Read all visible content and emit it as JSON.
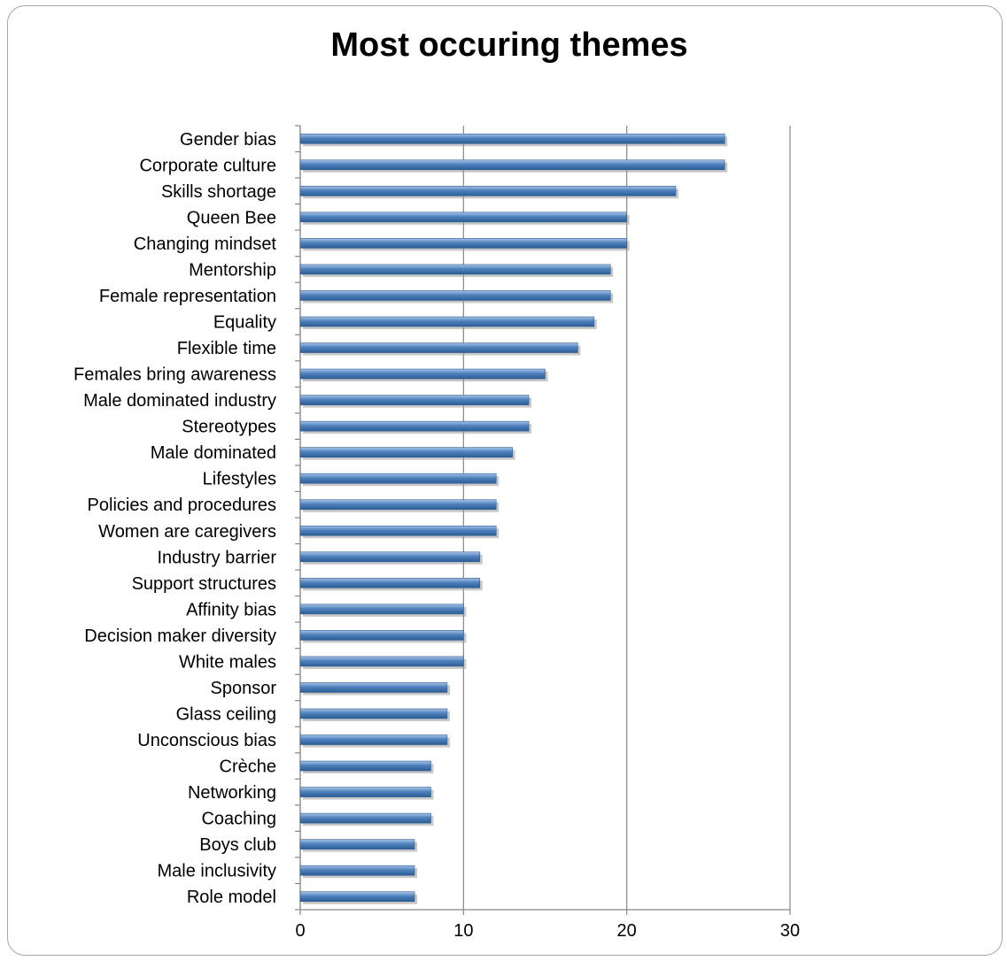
{
  "chart_data": {
    "type": "bar",
    "orientation": "horizontal",
    "title": "Most occuring themes",
    "categories": [
      "Gender bias",
      "Corporate culture",
      "Skills shortage",
      "Queen Bee",
      "Changing mindset",
      "Mentorship",
      "Female representation",
      "Equality",
      "Flexible time",
      "Females bring awareness",
      "Male dominated industry",
      "Stereotypes",
      "Male dominated",
      "Lifestyles",
      "Policies and procedures",
      "Women are caregivers",
      "Industry barrier",
      "Support structures",
      "Affinity bias",
      "Decision maker diversity",
      "White males",
      "Sponsor",
      "Glass ceiling",
      "Unconscious bias",
      "Crèche",
      "Networking",
      "Coaching",
      "Boys club",
      "Male inclusivity",
      "Role model"
    ],
    "values": [
      26,
      26,
      23,
      20,
      20,
      19,
      19,
      18,
      17,
      15,
      14,
      14,
      13,
      12,
      12,
      12,
      11,
      11,
      10,
      10,
      10,
      9,
      9,
      9,
      8,
      8,
      8,
      7,
      7,
      7
    ],
    "xlim": [
      0,
      30
    ],
    "xticks": [
      "0",
      "10",
      "20",
      "30"
    ],
    "grid": true,
    "legend": "none",
    "colors": {
      "bar": "#4f81bd",
      "bar_dark": "#2c5d94",
      "bar_light": "#a7c4e6",
      "grid": "#868686"
    }
  }
}
